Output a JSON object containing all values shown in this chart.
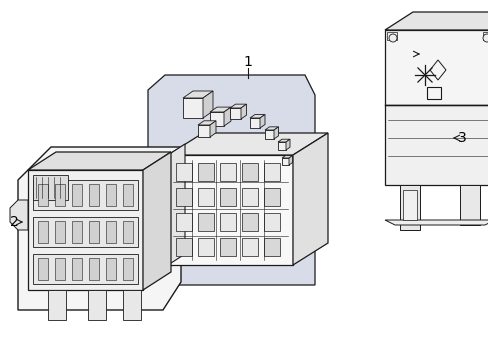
{
  "background_color": "#ffffff",
  "line_color": "#1a1a1a",
  "label_color": "#000000",
  "shading_color": "#d8dce8",
  "figsize": [
    4.89,
    3.6
  ],
  "dpi": 100,
  "xlim": [
    0,
    489
  ],
  "ylim": [
    0,
    360
  ]
}
